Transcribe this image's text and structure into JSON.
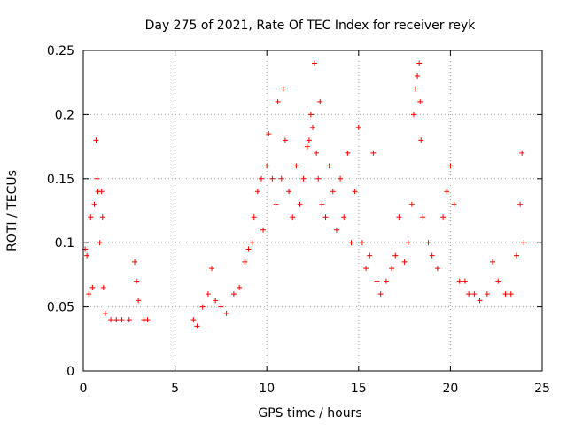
{
  "chart_data": {
    "type": "scatter",
    "title": "Day 275 of 2021, Rate Of TEC Index for receiver reyk",
    "xlabel": "GPS time / hours",
    "ylabel": "ROTI / TECUs",
    "xlim": [
      0,
      25
    ],
    "ylim": [
      0,
      0.25
    ],
    "xticks": [
      0,
      5,
      10,
      15,
      20,
      25
    ],
    "xtick_labels": [
      "0",
      "5",
      "10",
      "15",
      "20",
      "25"
    ],
    "yticks": [
      0,
      0.05,
      0.1,
      0.15,
      0.2,
      0.25
    ],
    "ytick_labels": [
      "0",
      "0.05",
      "0.1",
      "0.15",
      "0.2",
      "0.25"
    ],
    "grid": true,
    "marker": "+",
    "color": "#ff0000",
    "series": [
      {
        "name": "",
        "points": [
          [
            0.1,
            0.095
          ],
          [
            0.2,
            0.09
          ],
          [
            0.3,
            0.06
          ],
          [
            0.4,
            0.12
          ],
          [
            0.5,
            0.065
          ],
          [
            0.6,
            0.13
          ],
          [
            0.7,
            0.18
          ],
          [
            0.75,
            0.15
          ],
          [
            0.8,
            0.14
          ],
          [
            0.9,
            0.1
          ],
          [
            1.0,
            0.14
          ],
          [
            1.05,
            0.12
          ],
          [
            1.1,
            0.065
          ],
          [
            1.2,
            0.045
          ],
          [
            1.5,
            0.04
          ],
          [
            1.8,
            0.04
          ],
          [
            2.1,
            0.04
          ],
          [
            2.5,
            0.04
          ],
          [
            2.8,
            0.085
          ],
          [
            2.9,
            0.07
          ],
          [
            3.0,
            0.055
          ],
          [
            3.3,
            0.04
          ],
          [
            3.5,
            0.04
          ],
          [
            6.0,
            0.04
          ],
          [
            6.2,
            0.035
          ],
          [
            6.5,
            0.05
          ],
          [
            6.8,
            0.06
          ],
          [
            7.0,
            0.08
          ],
          [
            7.2,
            0.055
          ],
          [
            7.5,
            0.05
          ],
          [
            7.8,
            0.045
          ],
          [
            8.2,
            0.06
          ],
          [
            8.5,
            0.065
          ],
          [
            8.8,
            0.085
          ],
          [
            9.0,
            0.095
          ],
          [
            9.2,
            0.1
          ],
          [
            9.3,
            0.12
          ],
          [
            9.5,
            0.14
          ],
          [
            9.7,
            0.15
          ],
          [
            9.8,
            0.11
          ],
          [
            10.0,
            0.16
          ],
          [
            10.1,
            0.185
          ],
          [
            10.3,
            0.15
          ],
          [
            10.5,
            0.13
          ],
          [
            10.6,
            0.21
          ],
          [
            10.8,
            0.15
          ],
          [
            10.9,
            0.22
          ],
          [
            11.0,
            0.18
          ],
          [
            11.2,
            0.14
          ],
          [
            11.4,
            0.12
          ],
          [
            11.6,
            0.16
          ],
          [
            11.8,
            0.13
          ],
          [
            12.0,
            0.15
          ],
          [
            12.2,
            0.175
          ],
          [
            12.3,
            0.18
          ],
          [
            12.4,
            0.2
          ],
          [
            12.5,
            0.19
          ],
          [
            12.6,
            0.24
          ],
          [
            12.7,
            0.17
          ],
          [
            12.8,
            0.15
          ],
          [
            12.9,
            0.21
          ],
          [
            13.0,
            0.13
          ],
          [
            13.2,
            0.12
          ],
          [
            13.4,
            0.16
          ],
          [
            13.6,
            0.14
          ],
          [
            13.8,
            0.11
          ],
          [
            14.0,
            0.15
          ],
          [
            14.2,
            0.12
          ],
          [
            14.4,
            0.17
          ],
          [
            14.6,
            0.1
          ],
          [
            14.8,
            0.14
          ],
          [
            15.0,
            0.19
          ],
          [
            15.2,
            0.1
          ],
          [
            15.4,
            0.08
          ],
          [
            15.6,
            0.09
          ],
          [
            15.8,
            0.17
          ],
          [
            16.0,
            0.07
          ],
          [
            16.2,
            0.06
          ],
          [
            16.5,
            0.07
          ],
          [
            16.8,
            0.08
          ],
          [
            17.0,
            0.09
          ],
          [
            17.2,
            0.12
          ],
          [
            17.5,
            0.085
          ],
          [
            17.7,
            0.1
          ],
          [
            17.9,
            0.13
          ],
          [
            18.0,
            0.2
          ],
          [
            18.1,
            0.22
          ],
          [
            18.2,
            0.23
          ],
          [
            18.3,
            0.24
          ],
          [
            18.35,
            0.21
          ],
          [
            18.4,
            0.18
          ],
          [
            18.5,
            0.12
          ],
          [
            18.8,
            0.1
          ],
          [
            19.0,
            0.09
          ],
          [
            19.3,
            0.08
          ],
          [
            19.6,
            0.12
          ],
          [
            19.8,
            0.14
          ],
          [
            20.0,
            0.16
          ],
          [
            20.2,
            0.13
          ],
          [
            20.5,
            0.07
          ],
          [
            20.8,
            0.07
          ],
          [
            21.0,
            0.06
          ],
          [
            21.3,
            0.06
          ],
          [
            21.6,
            0.055
          ],
          [
            22.0,
            0.06
          ],
          [
            22.3,
            0.085
          ],
          [
            22.6,
            0.07
          ],
          [
            23.0,
            0.06
          ],
          [
            23.3,
            0.06
          ],
          [
            23.6,
            0.09
          ],
          [
            23.8,
            0.13
          ],
          [
            23.9,
            0.17
          ],
          [
            24.0,
            0.1
          ]
        ]
      }
    ]
  }
}
